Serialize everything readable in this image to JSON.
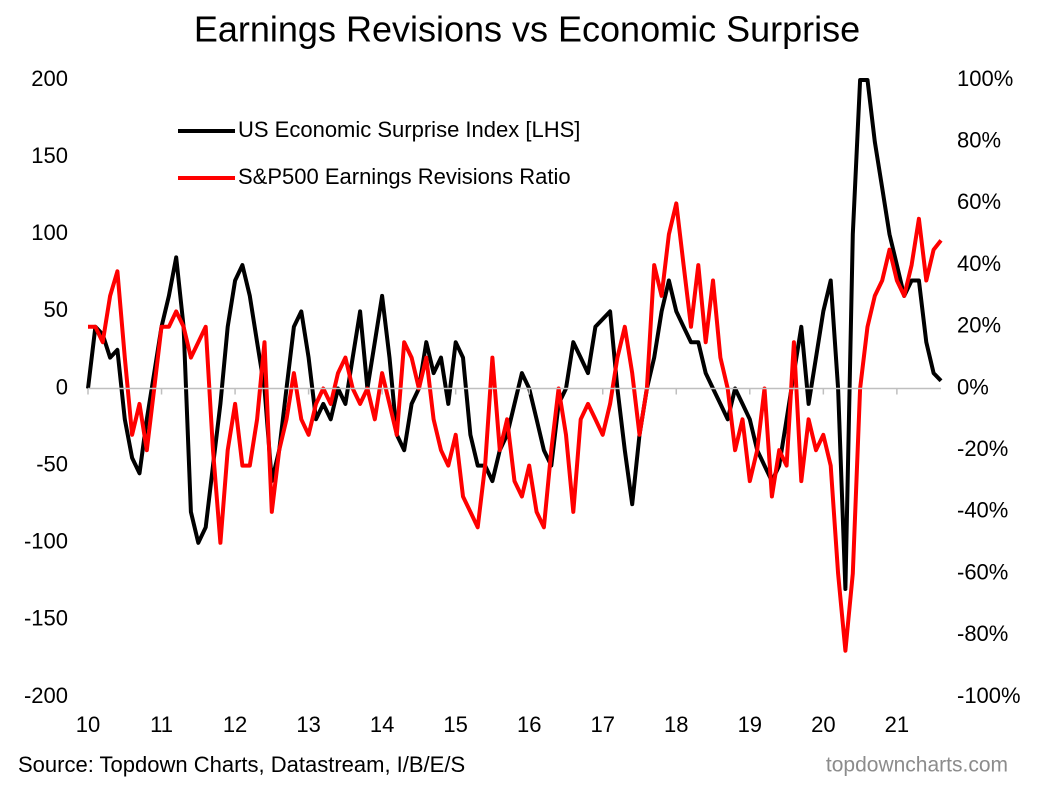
{
  "chart_data": {
    "type": "line",
    "title": "Earnings Revisions vs Economic Surprise",
    "source": "Source: Topdown Charts, Datastream, I/B/E/S",
    "watermark": "topdowncharts.com",
    "legend": "upper left",
    "x": [
      10.0,
      10.1,
      10.2,
      10.3,
      10.4,
      10.5,
      10.6,
      10.7,
      10.8,
      10.9,
      11.0,
      11.1,
      11.2,
      11.3,
      11.4,
      11.5,
      11.6,
      11.7,
      11.8,
      11.9,
      12.0,
      12.1,
      12.2,
      12.3,
      12.4,
      12.5,
      12.6,
      12.7,
      12.8,
      12.9,
      13.0,
      13.1,
      13.2,
      13.3,
      13.4,
      13.5,
      13.6,
      13.7,
      13.8,
      13.9,
      14.0,
      14.1,
      14.2,
      14.3,
      14.4,
      14.5,
      14.6,
      14.7,
      14.8,
      14.9,
      15.0,
      15.1,
      15.2,
      15.3,
      15.4,
      15.5,
      15.6,
      15.7,
      15.8,
      15.9,
      16.0,
      16.1,
      16.2,
      16.3,
      16.4,
      16.5,
      16.6,
      16.7,
      16.8,
      16.9,
      17.0,
      17.1,
      17.2,
      17.3,
      17.4,
      17.5,
      17.6,
      17.7,
      17.8,
      17.9,
      18.0,
      18.1,
      18.2,
      18.3,
      18.4,
      18.5,
      18.6,
      18.7,
      18.8,
      18.9,
      19.0,
      19.1,
      19.2,
      19.3,
      19.4,
      19.5,
      19.6,
      19.7,
      19.8,
      19.9,
      20.0,
      20.1,
      20.2,
      20.3,
      20.4,
      20.5,
      20.6,
      20.7,
      20.8,
      20.9,
      21.0,
      21.1,
      21.2,
      21.3,
      21.4,
      21.5,
      21.6
    ],
    "series": [
      {
        "name": "US Economic Surprise Index [LHS]",
        "color": "#000000",
        "axis": "y",
        "values": [
          0,
          40,
          35,
          20,
          25,
          -20,
          -45,
          -55,
          -20,
          10,
          40,
          60,
          85,
          40,
          -80,
          -100,
          -90,
          -50,
          -10,
          40,
          70,
          80,
          60,
          30,
          0,
          -60,
          -40,
          0,
          40,
          50,
          20,
          -20,
          -10,
          -20,
          0,
          -10,
          20,
          50,
          0,
          30,
          60,
          20,
          -30,
          -40,
          -10,
          0,
          30,
          10,
          20,
          -10,
          30,
          20,
          -30,
          -50,
          -50,
          -60,
          -40,
          -30,
          -10,
          10,
          0,
          -20,
          -40,
          -50,
          -10,
          0,
          30,
          20,
          10,
          40,
          45,
          50,
          0,
          -40,
          -75,
          -30,
          0,
          20,
          50,
          70,
          50,
          40,
          30,
          30,
          10,
          0,
          -10,
          -20,
          0,
          -10,
          -20,
          -40,
          -50,
          -60,
          -50,
          -20,
          10,
          40,
          -10,
          20,
          50,
          70,
          0,
          -130,
          100,
          200,
          200,
          160,
          130,
          100,
          80,
          60,
          70,
          70,
          30,
          10,
          5
        ]
      },
      {
        "name": "S&P500 Earnings Revisions Ratio",
        "color": "#ff0000",
        "axis": "y2",
        "values": [
          20,
          20,
          15,
          30,
          38,
          10,
          -15,
          -5,
          -20,
          0,
          20,
          20,
          25,
          20,
          10,
          15,
          20,
          -20,
          -50,
          -20,
          -5,
          -25,
          -25,
          -10,
          15,
          -40,
          -20,
          -10,
          5,
          -10,
          -15,
          -5,
          0,
          -5,
          5,
          10,
          0,
          -5,
          0,
          -10,
          5,
          -5,
          -15,
          15,
          10,
          0,
          10,
          -10,
          -20,
          -25,
          -15,
          -35,
          -40,
          -45,
          -25,
          10,
          -20,
          -10,
          -30,
          -35,
          -25,
          -40,
          -45,
          -20,
          0,
          -15,
          -40,
          -10,
          -5,
          -10,
          -15,
          -5,
          10,
          20,
          5,
          -15,
          0,
          40,
          30,
          50,
          60,
          40,
          20,
          40,
          15,
          35,
          10,
          0,
          -20,
          -10,
          -30,
          -20,
          0,
          -35,
          -20,
          -25,
          15,
          -30,
          -10,
          -20,
          -15,
          -25,
          -60,
          -85,
          -60,
          0,
          20,
          30,
          35,
          45,
          35,
          30,
          40,
          55,
          35,
          45,
          48
        ]
      }
    ],
    "xlim": [
      10,
      21.6
    ],
    "xticks": [
      10,
      11,
      12,
      13,
      14,
      15,
      16,
      17,
      18,
      19,
      20,
      21
    ],
    "ylim": [
      -200,
      200
    ],
    "yticks": [
      -200,
      -150,
      -100,
      -50,
      0,
      50,
      100,
      150,
      200
    ],
    "y2lim": [
      -100,
      100
    ],
    "y2ticks": [
      {
        "value": -100,
        "label": "-100%"
      },
      {
        "value": -80,
        "label": "-80%"
      },
      {
        "value": -60,
        "label": "-60%"
      },
      {
        "value": -40,
        "label": "-40%"
      },
      {
        "value": -20,
        "label": "-20%"
      },
      {
        "value": 0,
        "label": "0%"
      },
      {
        "value": 20,
        "label": "20%"
      },
      {
        "value": 40,
        "label": "40%"
      },
      {
        "value": 60,
        "label": "60%"
      },
      {
        "value": 80,
        "label": "80%"
      },
      {
        "value": 100,
        "label": "100%"
      }
    ]
  }
}
